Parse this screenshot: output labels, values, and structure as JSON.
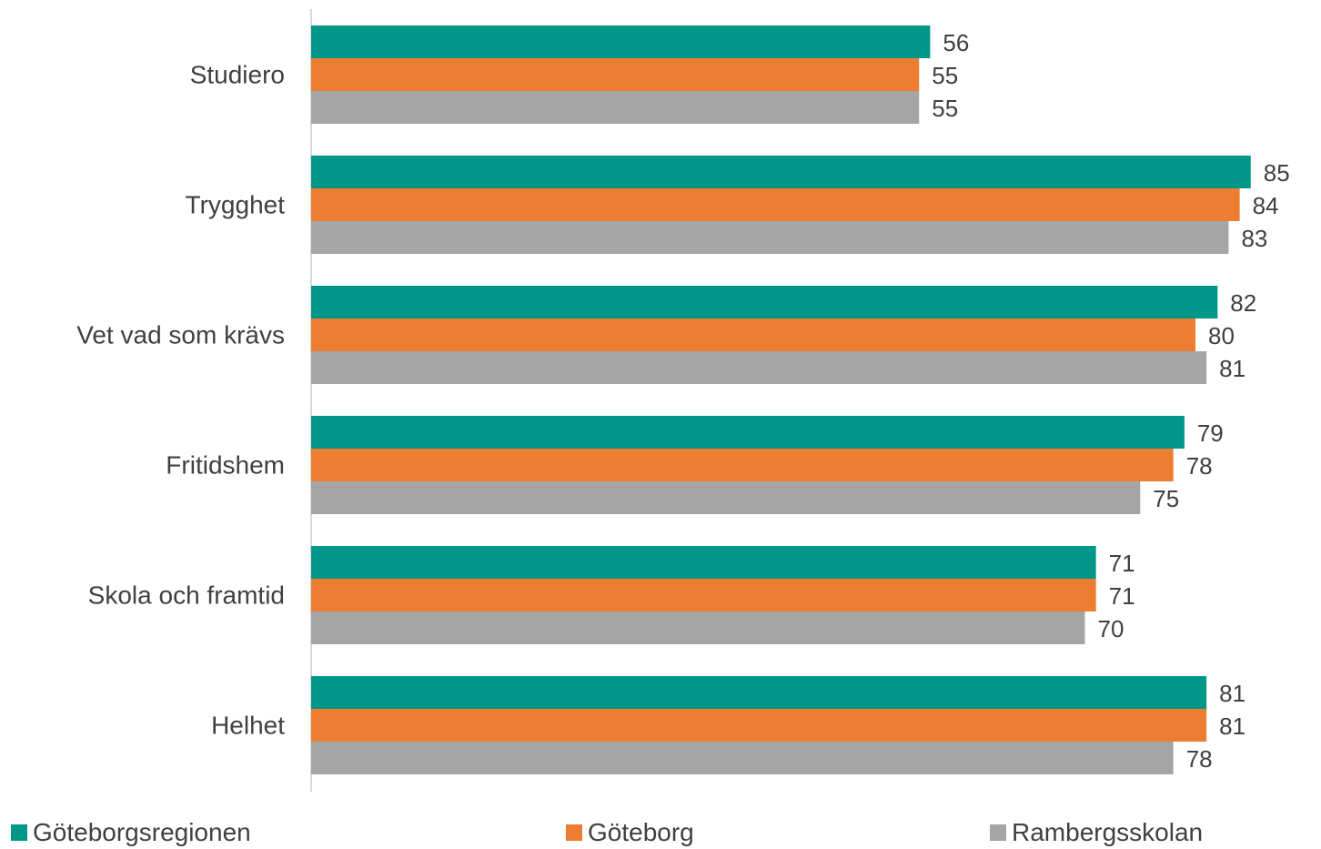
{
  "chart_data": {
    "type": "bar",
    "orientation": "horizontal",
    "categories": [
      "Studiero",
      "Trygghet",
      "Vet vad som krävs",
      "Fritidshem",
      "Skola och framtid",
      "Helhet"
    ],
    "series": [
      {
        "name": "Göteborgsregionen",
        "color": "#009688",
        "values": [
          56,
          85,
          82,
          79,
          71,
          81
        ]
      },
      {
        "name": "Göteborg",
        "color": "#ED7D31",
        "values": [
          55,
          84,
          80,
          78,
          71,
          81
        ]
      },
      {
        "name": "Rambergsskolan",
        "color": "#A5A5A5",
        "values": [
          55,
          83,
          81,
          75,
          70,
          78
        ]
      }
    ],
    "xlim": [
      0,
      85
    ],
    "grid": false,
    "legend_position": "bottom",
    "data_labels": true
  }
}
